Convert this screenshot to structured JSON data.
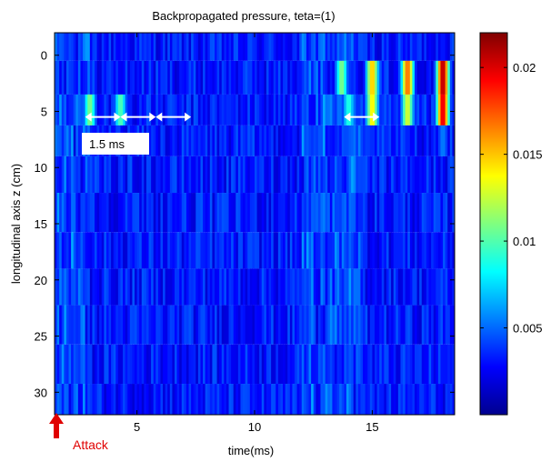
{
  "chart_data": {
    "type": "heatmap",
    "title": "Backpropagated pressure, teta=(1)",
    "xlabel": "time(ms)",
    "ylabel": "longitudinal axis z (cm)",
    "x_ticks": [
      "5",
      "10",
      "15"
    ],
    "y_ticks": [
      "0",
      "5",
      "10",
      "15",
      "20",
      "25",
      "30"
    ],
    "xlim": [
      1.5,
      18.5
    ],
    "ylim": [
      -2,
      32
    ],
    "y_reversed": true,
    "colorbar": {
      "colormap": "jet",
      "range": [
        0,
        0.022
      ],
      "ticks": [
        "0.005",
        "0.01",
        "0.015",
        "0.02"
      ]
    },
    "rows_z_cm": [
      -1,
      2,
      5,
      7.5,
      10.5,
      14,
      17.5,
      20.5,
      24,
      27.5,
      31
    ],
    "hotspots": [
      {
        "t": 18.0,
        "z": 2,
        "value": 0.021
      },
      {
        "t": 18.0,
        "z": 5,
        "value": 0.02
      },
      {
        "t": 16.5,
        "z": 2,
        "value": 0.017
      },
      {
        "t": 16.5,
        "z": 5,
        "value": 0.013
      },
      {
        "t": 15.0,
        "z": 2,
        "value": 0.015
      },
      {
        "t": 15.0,
        "z": 5,
        "value": 0.014
      },
      {
        "t": 13.7,
        "z": 2,
        "value": 0.011
      },
      {
        "t": 14.0,
        "z": 5,
        "value": 0.009
      },
      {
        "t": 3.0,
        "z": 5,
        "value": 0.011
      },
      {
        "t": 4.3,
        "z": 5,
        "value": 0.01
      }
    ],
    "annotations": [
      {
        "text": "1.5 ms",
        "t": 3.2,
        "z": 7.8
      },
      {
        "text": "Attack",
        "t": 1.5,
        "z": 33
      }
    ],
    "interval_markers_ms": [
      [
        2.8,
        4.3
      ],
      [
        4.3,
        5.8
      ],
      [
        5.8,
        7.3
      ],
      [
        13.8,
        15.3
      ]
    ]
  }
}
